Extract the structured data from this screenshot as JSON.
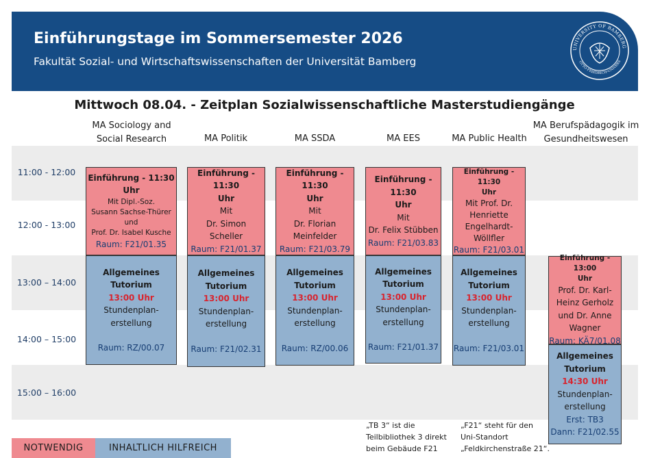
{
  "header": {
    "title": "Einführungstage im Sommersemester 2026",
    "subtitle": "Fakultät Sozial- und Wirtschaftswissenschaften der Universität Bamberg",
    "seal_text": "UNIVERSITY OF BAMBERG · OTTO-FRIEDRICH-UNIVERSITÄT BAMBERG"
  },
  "day_title": "Mittwoch 08.04. - Zeitplan Sozialwissenschaftliche Masterstudiengänge",
  "columns": [
    {
      "line1": "MA  Sociology and",
      "line2": "Social Research"
    },
    {
      "line1": "MA Politik",
      "line2": ""
    },
    {
      "line1": "MA SSDA",
      "line2": ""
    },
    {
      "line1": "MA EES",
      "line2": ""
    },
    {
      "line1": "MA Public Health",
      "line2": ""
    },
    {
      "line1": "MA Berufspädagogik im",
      "line2": "Gesundheitswesen"
    }
  ],
  "times": [
    "11:00 - 12:00",
    "12:00 - 13:00",
    "13:00 – 14:00",
    "14:00 – 15:00",
    "15:00 – 16:00"
  ],
  "intro": [
    {
      "t1": "Einführung - 11:30",
      "t2": "Uhr",
      "l1": "Mit Dipl.-Soz.",
      "l2": "Susann Sachse-Thürer",
      "l3": "und",
      "l4": "Prof. Dr. Isabel Kusche",
      "room": "Raum: F21/01.35"
    },
    {
      "t1": "Einführung - 11:30",
      "t2": "Uhr",
      "l1": "Mit",
      "l2": "Dr. Simon",
      "l3": "Scheller",
      "room": "Raum: F21/01.37"
    },
    {
      "t1": "Einführung - 11:30",
      "t2": "Uhr",
      "l1": "Mit",
      "l2": "Dr. Florian",
      "l3": "Meinfelder",
      "room": "Raum: F21/03.79"
    },
    {
      "t1": "Einführung - 11:30",
      "t2": "Uhr",
      "l1": "Mit",
      "l2": "Dr. Felix Stübben",
      "room": "Raum: F21/03.83"
    },
    {
      "t1": "Einführung - 11:30",
      "t2": "Uhr",
      "l1": "Mit Prof. Dr.",
      "l2": "Henriette",
      "l3": "Engelhardt-",
      "l4": "Wöllfler",
      "room": "Raum: F21/03.01"
    },
    {
      "t1": "Einführung - 13:00",
      "t2": "Uhr",
      "l1": "Prof. Dr. Karl-",
      "l2": "Heinz Gerholz",
      "l3": "und Dr. Anne",
      "l4": "Wagner",
      "room": "Raum: KÄ7/01.08"
    }
  ],
  "tutorium": [
    {
      "t1": "Allgemeines Tutorium",
      "time": "13:00 Uhr",
      "l1": "Stundenplan-",
      "l2": "erstellung",
      "room": "Raum: RZ/00.07"
    },
    {
      "t1": "Allgemeines",
      "t2": "Tutorium",
      "time": "13:00 Uhr",
      "l1": "Stundenplan-",
      "l2": "erstellung",
      "room": "Raum: F21/02.31"
    },
    {
      "t1": "Allgemeines",
      "t2": "Tutorium",
      "time": "13:00 Uhr",
      "l1": "Stundenplan-",
      "l2": "erstellung",
      "room": "Raum: RZ/00.06"
    },
    {
      "t1": "Allgemeines",
      "t2": "Tutorium",
      "time": "13:00 Uhr",
      "l1": "Stundenplan-",
      "l2": "erstellung",
      "room": "Raum: F21/01.37"
    },
    {
      "t1": "Allgemeines",
      "t2": "Tutorium",
      "time": "13:00 Uhr",
      "l1": "Stundenplan-",
      "l2": "erstellung",
      "room": "Raum: F21/03.01"
    },
    {
      "t1": "Allgemeines",
      "t2": "Tutorium",
      "time": "14:30 Uhr",
      "l1": "Stundenplan-",
      "l2": "erstellung",
      "room": "Erst: TB3",
      "room2": "Dann: F21/02.55"
    }
  ],
  "notes": [
    {
      "l1": "„TB 3“ ist die",
      "l2": "Teilbibliothek 3 direkt",
      "l3": "beim Gebäude F21"
    },
    {
      "l1": "„F21“ steht für den",
      "l2": "Uni-Standort",
      "l3": "„Feldkirchenstraße 21“."
    }
  ],
  "legend": {
    "required": "NOTWENDIG",
    "helpful": "INHALTLICH HILFREICH"
  },
  "colors": {
    "header": "#164c85",
    "required": "#ef8a90",
    "helpful": "#92b1cf",
    "time_highlight": "#d8242e"
  }
}
